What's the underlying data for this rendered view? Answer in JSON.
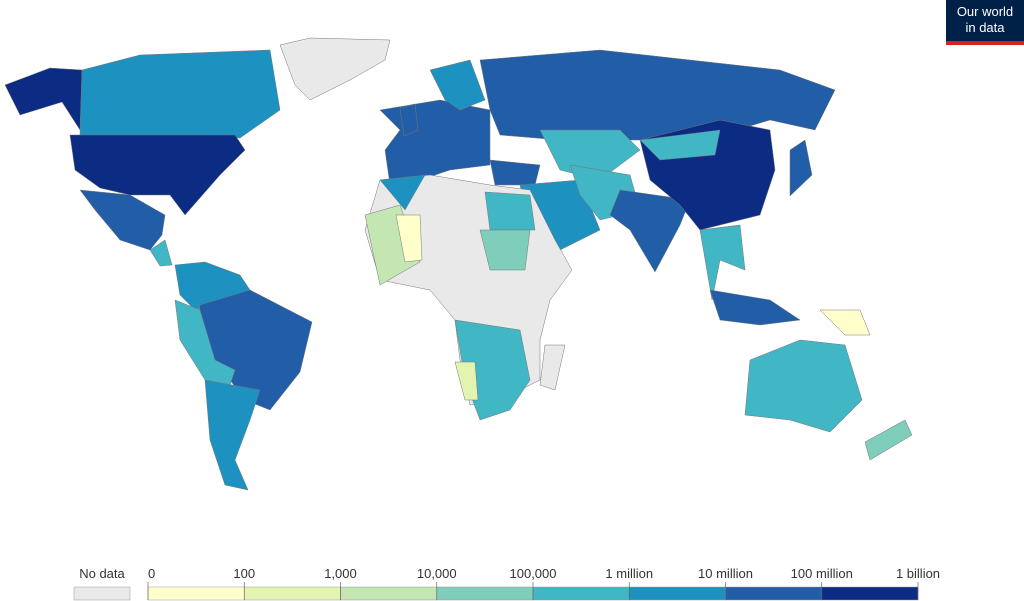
{
  "logo": {
    "line1": "Our world",
    "line2": "in data"
  },
  "legend": {
    "no_data": "No data",
    "ticks": [
      "0",
      "100",
      "1,000",
      "10,000",
      "100,000",
      "1 million",
      "10 million",
      "100 million",
      "1 billion"
    ],
    "colors": [
      "#ffffcc",
      "#e3f4b0",
      "#c3e6b3",
      "#7fcdbb",
      "#41b6c4",
      "#1d91c0",
      "#225ea8",
      "#0c2c84"
    ],
    "no_data_color": "#e9e9e9"
  }
}
